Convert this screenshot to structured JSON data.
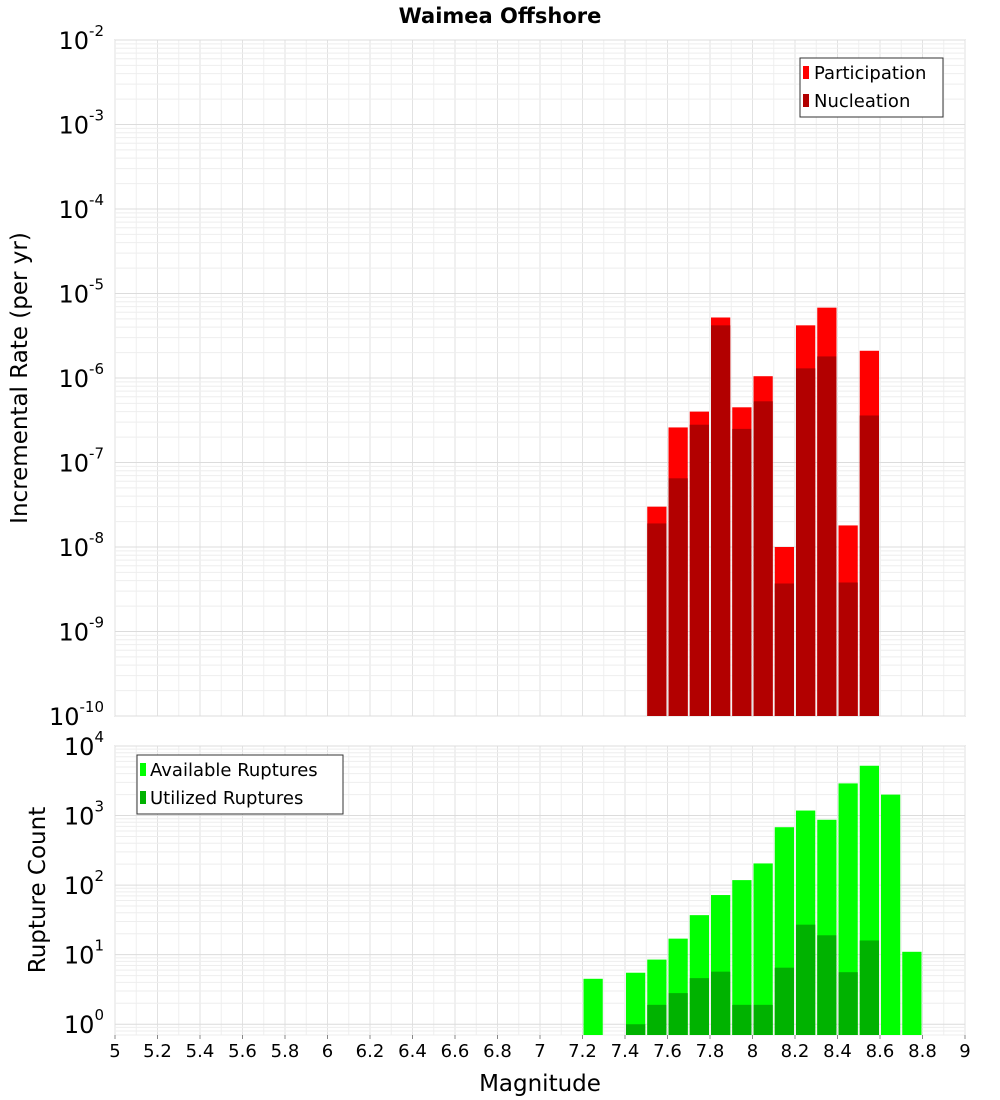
{
  "chart_data": [
    {
      "type": "bar",
      "title": "Waimea Offshore",
      "xlabel": "",
      "ylabel": "Incremental Rate (per yr)",
      "xlim": [
        5,
        9
      ],
      "ylim": [
        1e-10,
        0.01
      ],
      "yscale": "log",
      "grid": true,
      "legend_placement": "top-right",
      "bar_width": 0.1,
      "y_tick_exponents": [
        -10,
        -9,
        -8,
        -7,
        -6,
        -5,
        -4,
        -3,
        -2
      ],
      "x": [
        7.55,
        7.65,
        7.75,
        7.85,
        7.95,
        8.05,
        8.15,
        8.25,
        8.35,
        8.45,
        8.55
      ],
      "series": [
        {
          "name": "Participation",
          "color": "#ff0000",
          "values": [
            3e-08,
            2.6e-07,
            4e-07,
            5.2e-06,
            4.5e-07,
            1.05e-06,
            1e-08,
            4.2e-06,
            6.8e-06,
            1.8e-08,
            2.1e-06
          ]
        },
        {
          "name": "Nucleation",
          "color": "#b20000",
          "values": [
            1.9e-08,
            6.5e-08,
            2.8e-07,
            4.2e-06,
            2.5e-07,
            5.3e-07,
            3.7e-09,
            1.3e-06,
            1.8e-06,
            3.8e-09,
            3.6e-07
          ]
        }
      ]
    },
    {
      "type": "bar",
      "title": "",
      "xlabel": "Magnitude",
      "ylabel": "Rupture Count",
      "xlim": [
        5,
        9
      ],
      "ylim": [
        0.7,
        10000
      ],
      "yscale": "log",
      "grid": true,
      "legend_placement": "top-left",
      "bar_width": 0.1,
      "y_tick_exponents": [
        0,
        1,
        2,
        3,
        4
      ],
      "x_ticks": [
        "5",
        "5.2",
        "5.4",
        "5.6",
        "5.8",
        "6",
        "6.2",
        "6.4",
        "6.6",
        "6.8",
        "7",
        "7.2",
        "7.4",
        "7.6",
        "7.8",
        "8",
        "8.2",
        "8.4",
        "8.6",
        "8.8",
        "9"
      ],
      "series": [
        {
          "name": "Available Ruptures",
          "color": "#00ff00",
          "x": [
            7.25,
            7.45,
            7.55,
            7.65,
            7.75,
            7.85,
            7.95,
            8.05,
            8.15,
            8.25,
            8.35,
            8.45,
            8.55,
            8.65,
            8.75
          ],
          "values": [
            4.5,
            5.5,
            8.5,
            17,
            37,
            72,
            118,
            205,
            680,
            1180,
            870,
            2900,
            5200,
            2000,
            11
          ]
        },
        {
          "name": "Utilized Ruptures",
          "color": "#00b200",
          "x": [
            7.45,
            7.55,
            7.65,
            7.75,
            7.85,
            7.95,
            8.05,
            8.15,
            8.25,
            8.35,
            8.45,
            8.55
          ],
          "values": [
            1,
            1.9,
            2.8,
            4.6,
            5.7,
            1.9,
            1.9,
            6.5,
            27,
            19,
            5.6,
            16
          ]
        }
      ]
    }
  ]
}
